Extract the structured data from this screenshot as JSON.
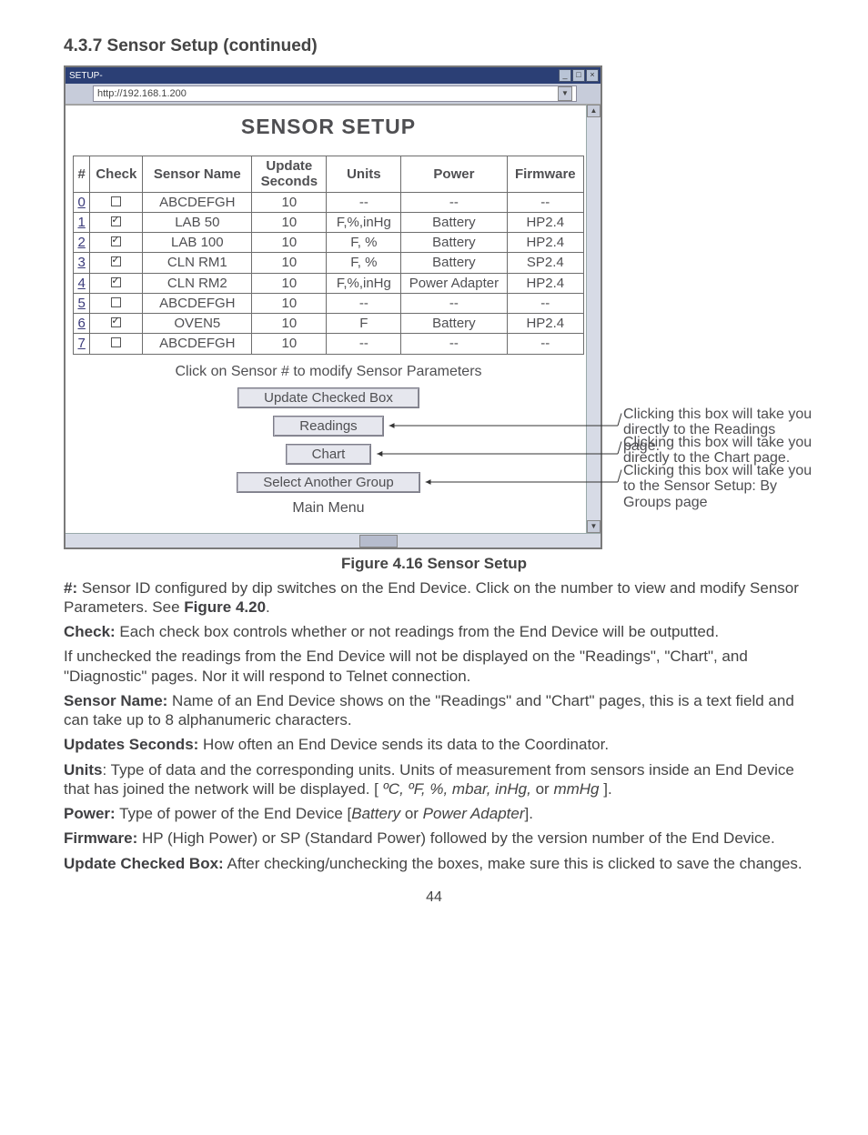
{
  "section_title": "4.3.7  Sensor Setup (continued)",
  "window": {
    "title": "SETUP-",
    "url": "http://192.168.1.200",
    "heading": "SENSOR SETUP",
    "caption_line": "Click on Sensor # to modify Sensor Parameters",
    "columns": [
      "#",
      "Check",
      "Sensor Name",
      "Update Seconds",
      "Units",
      "Power",
      "Firmware"
    ],
    "rows": [
      {
        "num": "0",
        "check": false,
        "name": "ABCDEFGH",
        "upd": "10",
        "units": "--",
        "power": "--",
        "fw": "--"
      },
      {
        "num": "1",
        "check": true,
        "name": "LAB 50",
        "upd": "10",
        "units": "F,%,inHg",
        "power": "Battery",
        "fw": "HP2.4"
      },
      {
        "num": "2",
        "check": true,
        "name": "LAB 100",
        "upd": "10",
        "units": "F, %",
        "power": "Battery",
        "fw": "HP2.4"
      },
      {
        "num": "3",
        "check": true,
        "name": "CLN RM1",
        "upd": "10",
        "units": "F, %",
        "power": "Battery",
        "fw": "SP2.4"
      },
      {
        "num": "4",
        "check": true,
        "name": "CLN RM2",
        "upd": "10",
        "units": "F,%,inHg",
        "power": "Power Adapter",
        "fw": "HP2.4"
      },
      {
        "num": "5",
        "check": false,
        "name": "ABCDEFGH",
        "upd": "10",
        "units": "--",
        "power": "--",
        "fw": "--"
      },
      {
        "num": "6",
        "check": true,
        "name": "OVEN5",
        "upd": "10",
        "units": "F",
        "power": "Battery",
        "fw": "HP2.4"
      },
      {
        "num": "7",
        "check": false,
        "name": "ABCDEFGH",
        "upd": "10",
        "units": "--",
        "power": "--",
        "fw": "--"
      }
    ],
    "buttons": {
      "update": "Update Checked Box",
      "readings": "Readings",
      "chart": "Chart",
      "select": "Select Another Group",
      "main": "Main Menu"
    }
  },
  "annotations": {
    "readings": "Clicking this box will take you directly to the Readings page.",
    "chart": "Clicking this box will take you directly to the Chart page.",
    "select": "Clicking this box will take you to the Sensor Setup: By Groups page"
  },
  "figure_caption": "Figure 4.16  Sensor Setup",
  "body": {
    "p1a": "#:",
    "p1b": "  Sensor ID configured by dip switches on the End Device. Click on the number to view and modify Sensor Parameters. See ",
    "p1c": "Figure 4.20",
    "p1d": ".",
    "p2a": "Check:",
    "p2b": "  Each check box controls whether or not readings from the End Device will be outputted.",
    "p3": "If unchecked the readings from the End Device will not be displayed on the \"Readings\", \"Chart\", and \"Diagnostic\" pages. Nor it will respond to Telnet connection.",
    "p4a": "Sensor Name:",
    "p4b": "  Name of an End Device shows on the \"Readings\" and \"Chart\" pages, this is a text field and can take up to 8 alphanumeric characters.",
    "p5a": "Updates Seconds:",
    "p5b": "  How often an End Device sends its data to the Coordinator.",
    "p6a": "Units",
    "p6b": ":  Type of data and the corresponding units. Units of measurement from sensors inside an End Device that has joined the network will be displayed. [ ",
    "p6c": "ºC, ºF, %, mbar, inHg,",
    "p6d": " or ",
    "p6e": "mmHg",
    "p6f": " ].",
    "p7a": "Power:",
    "p7b": "  Type of power of the End Device [",
    "p7c": "Battery",
    "p7d": " or ",
    "p7e": "Power Adapter",
    "p7f": "].",
    "p8a": "Firmware:",
    "p8b": "  HP (High Power) or SP (Standard Power) followed by the version number of the End Device.",
    "p9a": "Update Checked Box:",
    "p9b": "  After checking/unchecking the boxes, make sure this is clicked to save the changes."
  },
  "page_number": "44"
}
